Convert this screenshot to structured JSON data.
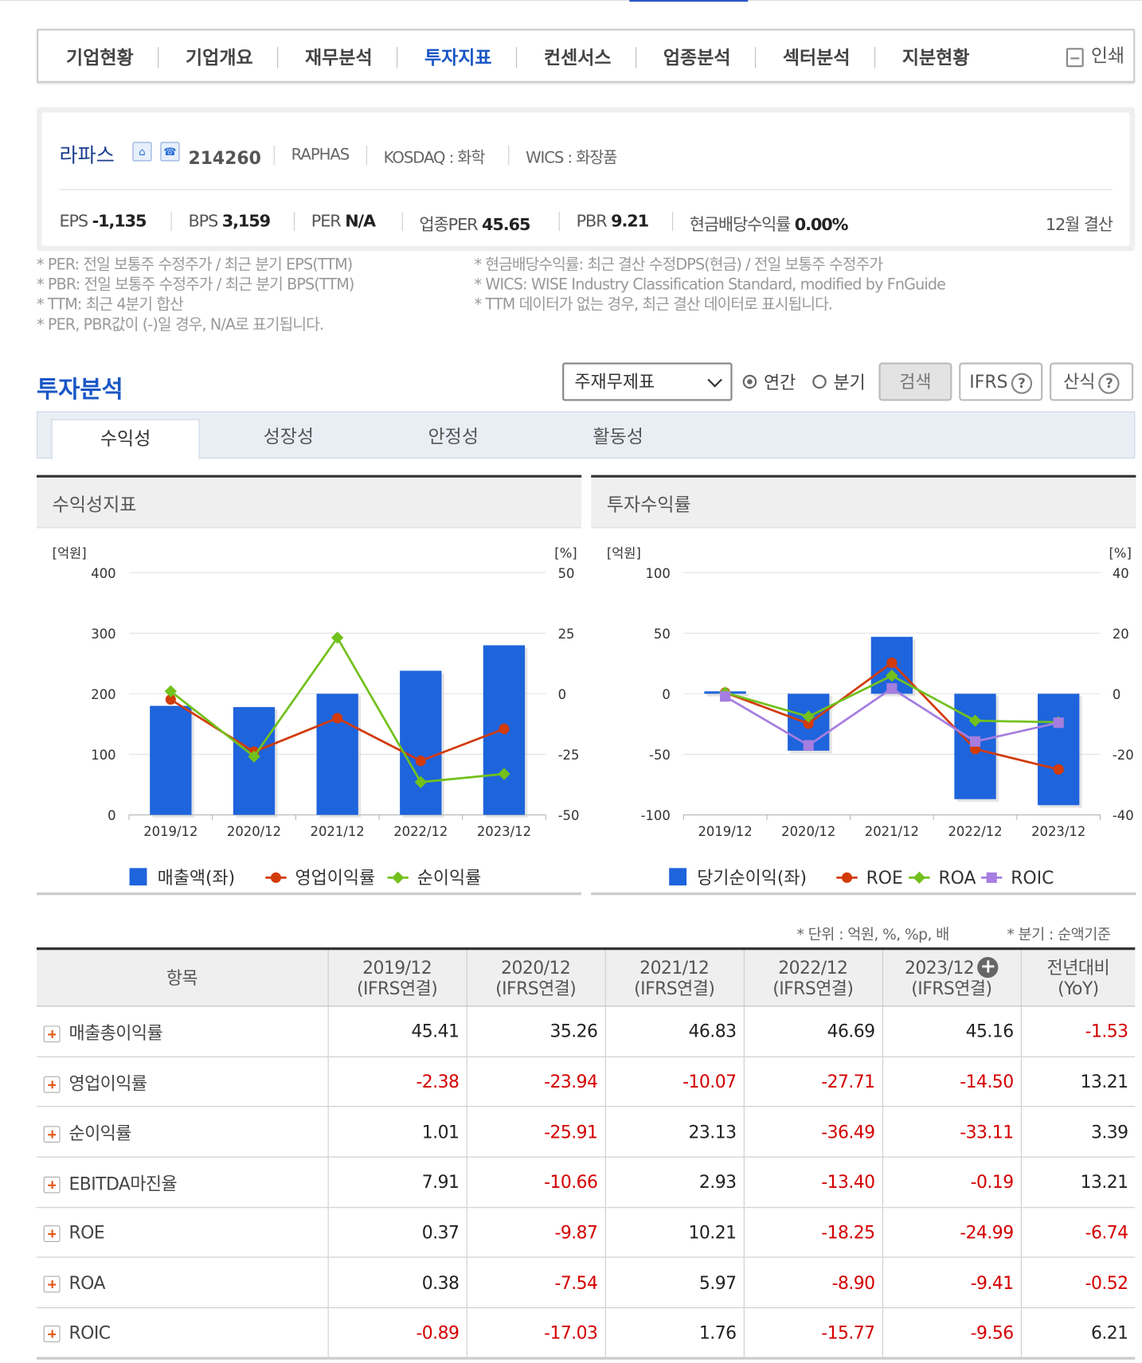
{
  "nav": {
    "tabs": [
      "기업현황",
      "기업개요",
      "재무분석",
      "투자지표",
      "컨센서스",
      "업종분석",
      "섹터분석",
      "지분현황"
    ],
    "active_index": 3,
    "print_label": "인쇄"
  },
  "company": {
    "name": "라파스",
    "code": "214260",
    "eng_name": "RAPHAS",
    "market": "KOSDAQ : 화학",
    "wics": "WICS : 화장품",
    "settlement": "12월 결산",
    "metrics": [
      {
        "label": "EPS",
        "value": "-1,135"
      },
      {
        "label": "BPS",
        "value": "3,159"
      },
      {
        "label": "PER",
        "value": "N/A"
      },
      {
        "label": "업종PER",
        "value": "45.65"
      },
      {
        "label": "PBR",
        "value": "9.21"
      },
      {
        "label": "현금배당수익률",
        "value": "0.00%"
      }
    ]
  },
  "notes_left": [
    "* PER: 전일 보통주 수정주가 / 최근 분기 EPS(TTM)",
    "* PBR: 전일 보통주 수정주가 / 최근 분기 BPS(TTM)",
    "* TTM: 최근 4분기 합산",
    "* PER, PBR값이 (-)일 경우, N/A로 표기됩니다."
  ],
  "notes_right": [
    "* 현금배당수익률: 최근 결산 수정DPS(현금) / 전일 보통주 수정주가",
    "* WICS: WISE Industry Classification Standard, modified by FnGuide",
    "* TTM 데이터가 없는 경우, 최근 결산 데이터로 표시됩니다."
  ],
  "analysis": {
    "title": "투자분석",
    "select_value": "주재무제표",
    "radio_annual": "연간",
    "radio_quarter": "분기",
    "search_button": "검색",
    "ifrs_button": "IFRS",
    "formula_button": "산식",
    "subtabs": [
      "수익성",
      "성장성",
      "안정성",
      "활동성"
    ],
    "active_subtab": 0
  },
  "chart_data": [
    {
      "type": "bar+line",
      "title": "수익성지표",
      "categories": [
        "2019/12",
        "2020/12",
        "2021/12",
        "2022/12",
        "2023/12"
      ],
      "left_unit": "[억원]",
      "right_unit": "[%]",
      "ylim_left": [
        0,
        400
      ],
      "ylim_right": [
        -50,
        50
      ],
      "left_ticks": [
        "400",
        "300",
        "200",
        "100",
        "0"
      ],
      "right_ticks": [
        "50",
        "25",
        "0",
        "-25",
        "-50"
      ],
      "bar_series": {
        "name": "매출액(좌)",
        "color": "#1e64dc",
        "values": [
          180,
          178,
          200,
          238,
          280
        ]
      },
      "line_series": [
        {
          "name": "영업이익률",
          "color": "#d23b0a",
          "marker": "circle",
          "values": [
            -2.38,
            -23.94,
            -10.07,
            -27.71,
            -14.5
          ]
        },
        {
          "name": "순이익률",
          "color": "#72c11c",
          "marker": "diamond",
          "values": [
            1.01,
            -25.91,
            23.13,
            -36.49,
            -33.11
          ]
        }
      ],
      "grid": true,
      "legend": "bottom"
    },
    {
      "type": "bar+line",
      "title": "투자수익률",
      "categories": [
        "2019/12",
        "2020/12",
        "2021/12",
        "2022/12",
        "2023/12"
      ],
      "left_unit": "[억원]",
      "right_unit": "[%]",
      "ylim_left": [
        -100,
        100
      ],
      "ylim_right": [
        -40,
        40
      ],
      "left_ticks": [
        "100",
        "50",
        "0",
        "-50",
        "-100"
      ],
      "right_ticks": [
        "40",
        "20",
        "0",
        "-20",
        "-40"
      ],
      "bar_series": {
        "name": "당기순이익(좌)",
        "color": "#1e64dc",
        "values": [
          2,
          -47,
          47,
          -87,
          -92
        ]
      },
      "line_series": [
        {
          "name": "ROE",
          "color": "#d23b0a",
          "marker": "circle",
          "values": [
            0.37,
            -9.87,
            10.21,
            -18.25,
            -24.99
          ]
        },
        {
          "name": "ROA",
          "color": "#72c11c",
          "marker": "diamond",
          "values": [
            0.38,
            -7.54,
            5.97,
            -8.9,
            -9.41
          ]
        },
        {
          "name": "ROIC",
          "color": "#a67de0",
          "marker": "square",
          "values": [
            -0.89,
            -17.03,
            1.76,
            -15.77,
            -9.56
          ]
        }
      ],
      "grid": true,
      "legend": "bottom"
    }
  ],
  "table": {
    "unit_note": "* 단위 : 억원, %, %p, 배",
    "quarter_note": "* 분기 : 순액기준",
    "headers": [
      {
        "l1": "항목",
        "l2": ""
      },
      {
        "l1": "2019/12",
        "l2": "(IFRS연결)"
      },
      {
        "l1": "2020/12",
        "l2": "(IFRS연결)"
      },
      {
        "l1": "2021/12",
        "l2": "(IFRS연결)"
      },
      {
        "l1": "2022/12",
        "l2": "(IFRS연결)"
      },
      {
        "l1": "2023/12",
        "l2": "(IFRS연결)"
      },
      {
        "l1": "전년대비",
        "l2": "(YoY)"
      }
    ],
    "rows": [
      {
        "label": "매출총이익률",
        "values": [
          "45.41",
          "35.26",
          "46.83",
          "46.69",
          "45.16",
          "-1.53"
        ]
      },
      {
        "label": "영업이익률",
        "values": [
          "-2.38",
          "-23.94",
          "-10.07",
          "-27.71",
          "-14.50",
          "13.21"
        ]
      },
      {
        "label": "순이익률",
        "values": [
          "1.01",
          "-25.91",
          "23.13",
          "-36.49",
          "-33.11",
          "3.39"
        ]
      },
      {
        "label": "EBITDA마진율",
        "values": [
          "7.91",
          "-10.66",
          "2.93",
          "-13.40",
          "-0.19",
          "13.21"
        ]
      },
      {
        "label": "ROE",
        "values": [
          "0.37",
          "-9.87",
          "10.21",
          "-18.25",
          "-24.99",
          "-6.74"
        ]
      },
      {
        "label": "ROA",
        "values": [
          "0.38",
          "-7.54",
          "5.97",
          "-8.90",
          "-9.41",
          "-0.52"
        ]
      },
      {
        "label": "ROIC",
        "values": [
          "-0.89",
          "-17.03",
          "1.76",
          "-15.77",
          "-9.56",
          "6.21"
        ]
      }
    ]
  }
}
